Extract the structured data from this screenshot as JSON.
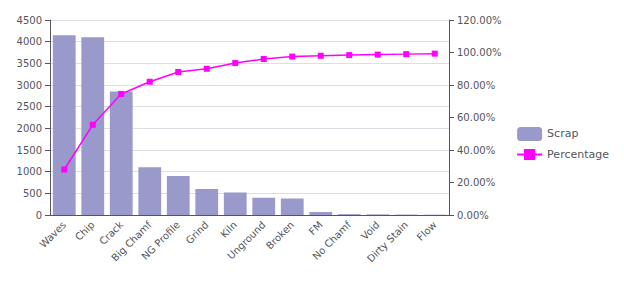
{
  "chart_data": {
    "type": "bar",
    "categories": [
      "Waves",
      "Chip",
      "Crack",
      "Big Chamf",
      "NG Profile",
      "Grind",
      "Kiln",
      "Unground",
      "Broken",
      "FM",
      "No Chamf",
      "Void",
      "Dirty Stain",
      "Flow"
    ],
    "series": [
      {
        "name": "Scrap",
        "type": "bar",
        "color": "#9999cc",
        "values": [
          4150,
          4100,
          2850,
          1100,
          900,
          600,
          520,
          400,
          380,
          70,
          20,
          15,
          10,
          8
        ]
      },
      {
        "name": "Percentage",
        "type": "line",
        "color": "#ff00ff",
        "marker": "square",
        "axis": "y2",
        "values": [
          0.28,
          0.555,
          0.745,
          0.82,
          0.88,
          0.9,
          0.935,
          0.96,
          0.975,
          0.98,
          0.984,
          0.987,
          0.99,
          0.993
        ]
      }
    ],
    "ylim": [
      0,
      4500
    ],
    "yticks": [
      0,
      500,
      1000,
      1500,
      2000,
      2500,
      3000,
      3500,
      4000,
      4500
    ],
    "y2lim": [
      0,
      1.2
    ],
    "y2ticks": [
      {
        "value": 0.0,
        "label": "0.00%"
      },
      {
        "value": 0.2,
        "label": "20.00%"
      },
      {
        "value": 0.4,
        "label": "40.00%"
      },
      {
        "value": 0.6,
        "label": "60.00%"
      },
      {
        "value": 0.8,
        "label": "80.00%"
      },
      {
        "value": 1.0,
        "label": "100.00%"
      },
      {
        "value": 1.2,
        "label": "120.00%"
      }
    ],
    "grid": true,
    "legend": "right"
  }
}
